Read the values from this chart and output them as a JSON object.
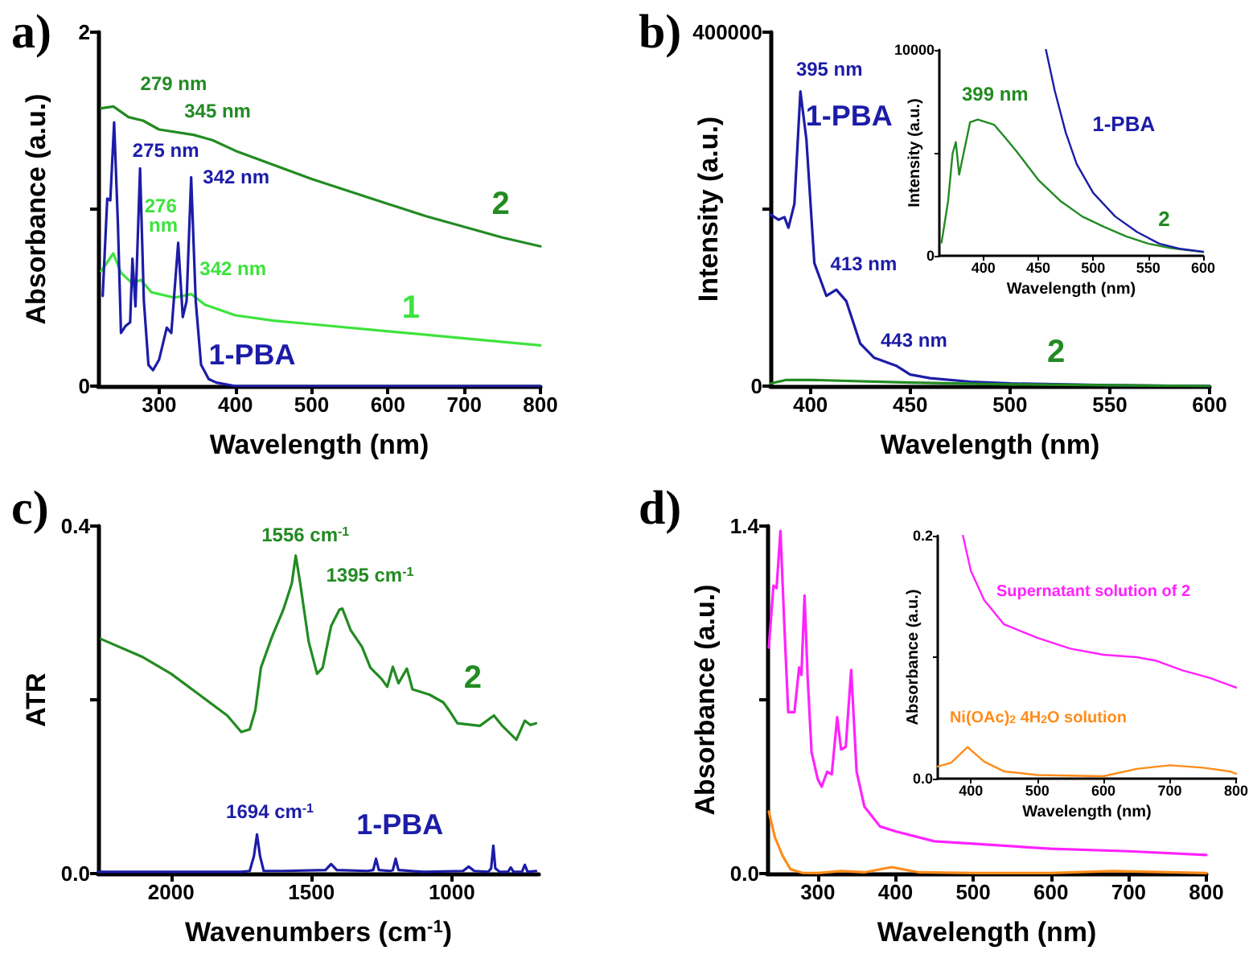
{
  "chart_data": [
    {
      "type": "line",
      "title": "a)",
      "xlabel": "Wavelength (nm)",
      "ylabel": "Absorbance (a.u.)",
      "xlim": [
        220,
        800
      ],
      "ylim": [
        0,
        2
      ],
      "xticks": [
        300,
        400,
        500,
        600,
        700,
        800
      ],
      "yticks": [
        0,
        {
          "value": 1,
          "label": null
        },
        2
      ],
      "series": [
        {
          "name": "2",
          "color": "#228b22",
          "x": [
            224,
            240,
            260,
            279,
            300,
            345,
            370,
            400,
            450,
            500,
            550,
            600,
            650,
            700,
            750,
            800
          ],
          "values": [
            1.57,
            1.58,
            1.52,
            1.5,
            1.45,
            1.42,
            1.39,
            1.33,
            1.25,
            1.17,
            1.1,
            1.03,
            0.96,
            0.9,
            0.84,
            0.79
          ]
        },
        {
          "name": "1",
          "color": "#3ee33e",
          "x": [
            224,
            240,
            250,
            265,
            276,
            290,
            320,
            342,
            360,
            400,
            450,
            500,
            600,
            700,
            800
          ],
          "values": [
            0.65,
            0.75,
            0.64,
            0.58,
            0.6,
            0.53,
            0.5,
            0.52,
            0.46,
            0.4,
            0.37,
            0.35,
            0.31,
            0.27,
            0.23
          ]
        },
        {
          "name": "1-PBA",
          "color": "#1c1ca8",
          "x": [
            226,
            232,
            236,
            241,
            246,
            250,
            256,
            262,
            265,
            269,
            275,
            280,
            286,
            292,
            300,
            310,
            316,
            325,
            331,
            336,
            342,
            348,
            355,
            365,
            375,
            400,
            500,
            600,
            700,
            800
          ],
          "values": [
            0.51,
            1.06,
            1.05,
            1.49,
            0.91,
            0.3,
            0.34,
            0.36,
            0.72,
            0.45,
            1.23,
            0.48,
            0.12,
            0.09,
            0.15,
            0.33,
            0.3,
            0.81,
            0.39,
            0.48,
            1.18,
            0.48,
            0.12,
            0.04,
            0.02,
            0,
            0,
            0,
            0,
            0
          ]
        }
      ],
      "annotations": [
        {
          "text": "279 nm",
          "x": 279,
          "y": 1.5
        },
        {
          "text": "345 nm",
          "x": 345,
          "y": 1.42
        },
        {
          "text": "275 nm",
          "x": 275,
          "y": 1.23
        },
        {
          "text": "342 nm",
          "x": 342,
          "y": 1.18
        },
        {
          "text": "276 nm",
          "x": 276,
          "y": 0.6
        },
        {
          "text": "342 nm",
          "x": 342,
          "y": 0.52
        }
      ]
    },
    {
      "type": "line",
      "title": "b)",
      "xlabel": "Wavelength (nm)",
      "ylabel": "Intensity (a.u.)",
      "xlim": [
        380,
        600
      ],
      "ylim": [
        0,
        400000
      ],
      "xticks": [
        400,
        450,
        500,
        550,
        600
      ],
      "yticks": [
        0,
        {
          "value": 200000,
          "label": null
        },
        400000
      ],
      "series": [
        {
          "name": "1-PBA",
          "color": "#1c1ca8",
          "x": [
            380,
            384,
            387,
            389,
            392,
            395,
            398,
            402,
            408,
            413,
            418,
            425,
            432,
            443,
            450,
            460,
            480,
            500,
            550,
            600
          ],
          "values": [
            194000,
            188000,
            191000,
            179000,
            206000,
            333000,
            279000,
            139000,
            102000,
            109000,
            96000,
            48000,
            32000,
            23000,
            13000,
            9000,
            5000,
            3000,
            1000,
            0
          ]
        },
        {
          "name": "2",
          "color": "#228b22",
          "x": [
            380,
            388,
            400,
            450,
            500,
            550,
            600
          ],
          "values": [
            3000,
            7000,
            7000,
            4000,
            2000,
            1000,
            0
          ]
        }
      ],
      "annotations": [
        {
          "text": "395 nm",
          "x": 395,
          "y": 333000
        },
        {
          "text": "413 nm",
          "x": 413,
          "y": 109000
        },
        {
          "text": "443 nm",
          "x": 443,
          "y": 23000
        }
      ]
    },
    {
      "type": "line",
      "xlabel": "Wavelength (nm)",
      "ylabel": "Intensity (a.u.)",
      "xlim": [
        360,
        600
      ],
      "ylim": [
        0,
        10000
      ],
      "xticks": [
        400,
        450,
        500,
        550,
        600
      ],
      "yticks": [
        0,
        {
          "value": 5000,
          "label": null
        },
        10000
      ],
      "series": [
        {
          "name": "2",
          "color": "#228b22",
          "x": [
            362,
            368,
            372,
            375,
            378,
            382,
            388,
            395,
            410,
            420,
            430,
            450,
            470,
            490,
            510,
            530,
            550,
            570,
            600
          ],
          "values": [
            640,
            2670,
            4960,
            5520,
            3940,
            4960,
            6490,
            6620,
            6360,
            5730,
            5090,
            3690,
            2670,
            1910,
            1400,
            940,
            590,
            380,
            180
          ]
        },
        {
          "name": "1-PBA",
          "color": "#1c1ca8",
          "x": [
            457,
            465,
            475,
            485,
            500,
            520,
            540,
            560,
            580,
            600
          ],
          "values": [
            10000,
            8020,
            5980,
            4450,
            3050,
            1910,
            1150,
            590,
            330,
            200
          ]
        }
      ],
      "annotations": [
        {
          "text": "399 nm",
          "x": 399,
          "y": 6600
        }
      ]
    },
    {
      "type": "line",
      "title": "c)",
      "xlabel": "Wavenumbers (cm$^{-1}$)",
      "ylabel": "ATR",
      "xlim": [
        2260,
        690
      ],
      "ylim": [
        0,
        0.4
      ],
      "xticks": [
        2000,
        1500,
        1000
      ],
      "yticks": [
        {
          "value": 0,
          "label": "0.0"
        },
        {
          "value": 0.2,
          "label": null
        },
        {
          "value": 0.4,
          "label": "0.4"
        }
      ],
      "series": [
        {
          "name": "2",
          "color": "#228b22",
          "x": [
            2250,
            2100,
            2000,
            1900,
            1800,
            1750,
            1720,
            1700,
            1680,
            1640,
            1600,
            1570,
            1556,
            1540,
            1510,
            1480,
            1460,
            1430,
            1400,
            1390,
            1360,
            1320,
            1290,
            1250,
            1230,
            1210,
            1190,
            1160,
            1140,
            1080,
            1030,
            1010,
            980,
            900,
            850,
            820,
            770,
            740,
            720,
            700
          ],
          "values": [
            0.27,
            0.249,
            0.23,
            0.206,
            0.182,
            0.163,
            0.166,
            0.188,
            0.237,
            0.273,
            0.304,
            0.334,
            0.366,
            0.334,
            0.267,
            0.23,
            0.237,
            0.285,
            0.304,
            0.305,
            0.28,
            0.261,
            0.237,
            0.224,
            0.215,
            0.238,
            0.219,
            0.236,
            0.212,
            0.206,
            0.197,
            0.188,
            0.173,
            0.17,
            0.182,
            0.17,
            0.154,
            0.176,
            0.171,
            0.173
          ]
        },
        {
          "name": "1-PBA",
          "color": "#1c1ca8",
          "x": [
            2260,
            2000,
            1750,
            1720,
            1705,
            1694,
            1683,
            1670,
            1600,
            1450,
            1430,
            1410,
            1300,
            1280,
            1270,
            1260,
            1220,
            1210,
            1200,
            1190,
            1100,
            960,
            940,
            920,
            870,
            860,
            852,
            845,
            830,
            800,
            790,
            780,
            750,
            740,
            730,
            700
          ],
          "values": [
            0.002,
            0.002,
            0.002,
            0.003,
            0.02,
            0.045,
            0.02,
            0.003,
            0.003,
            0.004,
            0.011,
            0.004,
            0.003,
            0.004,
            0.017,
            0.004,
            0.003,
            0.004,
            0.017,
            0.004,
            0.002,
            0.003,
            0.008,
            0.003,
            0.002,
            0.006,
            0.032,
            0.006,
            0.002,
            0.002,
            0.007,
            0.002,
            0.002,
            0.01,
            0.002,
            0.003
          ]
        }
      ],
      "annotations": [
        {
          "text": "1556 cm$^{-1}$",
          "x": 1556,
          "y": 0.366
        },
        {
          "text": "1395 cm$^{-1}$",
          "x": 1395,
          "y": 0.305
        },
        {
          "text": "1694 cm$^{-1}$",
          "x": 1694,
          "y": 0.045
        }
      ]
    },
    {
      "type": "line",
      "title": "d)",
      "xlabel": "Wavelength (nm)",
      "ylabel": "Absorbance (a.u.)",
      "xlim": [
        235,
        800
      ],
      "ylim": [
        0,
        1.4
      ],
      "xticks": [
        300,
        400,
        500,
        600,
        700,
        800
      ],
      "yticks": [
        {
          "value": 0,
          "label": "0.0"
        },
        {
          "value": 0.7,
          "label": null
        },
        {
          "value": 1.4,
          "label": "1.4"
        }
      ],
      "series": [
        {
          "color": "#ff22ff",
          "x": [
            237,
            243,
            247,
            252,
            257,
            262,
            270,
            276,
            279,
            283,
            287,
            292,
            300,
            305,
            312,
            318,
            325,
            330,
            336,
            343,
            350,
            360,
            380,
            400,
            450,
            500,
            600,
            700,
            800
          ],
          "values": [
            0.91,
            1.16,
            1.15,
            1.38,
            1.0,
            0.65,
            0.65,
            0.83,
            0.8,
            1.12,
            0.79,
            0.49,
            0.38,
            0.35,
            0.41,
            0.4,
            0.63,
            0.5,
            0.51,
            0.82,
            0.41,
            0.27,
            0.19,
            0.17,
            0.13,
            0.12,
            0.1,
            0.09,
            0.075
          ]
        },
        {
          "color": "#ff8c1a",
          "x": [
            237,
            245,
            255,
            265,
            280,
            300,
            330,
            360,
            395,
            430,
            500,
            600,
            680,
            800
          ],
          "values": [
            0.25,
            0.145,
            0.07,
            0.017,
            0.003,
            0.002,
            0.01,
            0.005,
            0.026,
            0.005,
            0.002,
            0.002,
            0.01,
            0.002
          ]
        }
      ]
    },
    {
      "type": "line",
      "xlabel": "Wavelength (nm)",
      "ylabel": "Absorbance (a.u.)",
      "xlim": [
        350,
        800
      ],
      "ylim": [
        0,
        0.2
      ],
      "xticks": [
        400,
        500,
        600,
        700,
        800
      ],
      "yticks": [
        {
          "value": 0,
          "label": "0.0"
        },
        {
          "value": 0.1,
          "label": null
        },
        {
          "value": 0.2,
          "label": "0.2"
        }
      ],
      "series": [
        {
          "name": "Supernatant solution of 2",
          "color": "#ff22ff",
          "x": [
            388,
            400,
            420,
            450,
            500,
            550,
            600,
            650,
            680,
            720,
            760,
            800
          ],
          "values": [
            0.2,
            0.171,
            0.147,
            0.127,
            0.116,
            0.107,
            0.102,
            0.1,
            0.097,
            0.089,
            0.083,
            0.075
          ]
        },
        {
          "name": "Ni(OAc)$_{2}$ 4H$_{2}$O solution",
          "color": "#ff8c1a",
          "x": [
            350,
            370,
            395,
            420,
            450,
            500,
            600,
            650,
            700,
            750,
            790,
            800
          ],
          "values": [
            0.01,
            0.013,
            0.026,
            0.014,
            0.006,
            0.003,
            0.002,
            0.008,
            0.011,
            0.009,
            0.006,
            0.004
          ]
        }
      ]
    }
  ]
}
